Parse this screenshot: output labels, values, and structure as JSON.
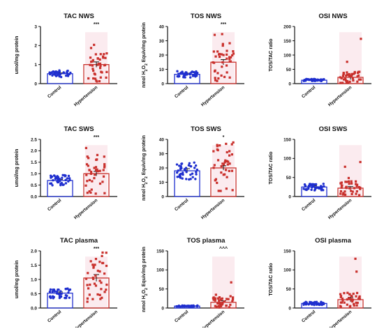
{
  "chart_data": [
    {
      "id": "tac_nws",
      "type": "bar",
      "title": "TAC NWS",
      "ylabel": "umol/mg protein",
      "ylim": [
        0,
        3
      ],
      "yticks": [
        "0",
        "1",
        "2",
        "3"
      ],
      "categories": [
        "Control",
        "Hypertension"
      ],
      "means": [
        0.52,
        1.0
      ],
      "errors": [
        0.04,
        0.14
      ],
      "significance": "***",
      "colors": {
        "control": "#1f2fcf",
        "hypertension": "#c9302c"
      }
    },
    {
      "id": "tos_nws",
      "type": "bar",
      "title": "TOS NWS",
      "ylabel": "nmol H2O2 Equiv/mg protein",
      "ylim": [
        0,
        40
      ],
      "yticks": [
        "0",
        "10",
        "20",
        "30",
        "40"
      ],
      "categories": [
        "Control",
        "Hypertension"
      ],
      "means": [
        6.5,
        15
      ],
      "errors": [
        0.8,
        1.8
      ],
      "significance": "***"
    },
    {
      "id": "osi_nws",
      "type": "bar",
      "title": "OSI NWS",
      "ylabel": "TOS/TAC ratio",
      "ylim": [
        0,
        200
      ],
      "yticks": [
        "0",
        "50",
        "100",
        "150",
        "200"
      ],
      "categories": [
        "Control",
        "Hypertension"
      ],
      "means": [
        12,
        22
      ],
      "errors": [
        2,
        8
      ],
      "significance": ""
    },
    {
      "id": "tac_sws",
      "type": "bar",
      "title": "TAC SWS",
      "ylabel": "umol/mg protein",
      "ylim": [
        0,
        2.5
      ],
      "yticks": [
        "0.0",
        "0.5",
        "1.0",
        "1.5",
        "2.0",
        "2.5"
      ],
      "categories": [
        "Control",
        "Hypertension"
      ],
      "means": [
        0.7,
        1.0
      ],
      "errors": [
        0.05,
        0.1
      ],
      "significance": "***"
    },
    {
      "id": "tos_sws",
      "type": "bar",
      "title": "TOS SWS",
      "ylabel": "nmol H2O2 Equiv/mg protein",
      "ylim": [
        0,
        40
      ],
      "yticks": [
        "0",
        "10",
        "20",
        "30",
        "40"
      ],
      "categories": [
        "Control",
        "Hypertension"
      ],
      "means": [
        18,
        20
      ],
      "errors": [
        1.5,
        1.5
      ],
      "significance": "*"
    },
    {
      "id": "osi_sws",
      "type": "bar",
      "title": "OSI SWS",
      "ylabel": "TOS/TAC ratio",
      "ylim": [
        0,
        150
      ],
      "yticks": [
        "0",
        "50",
        "100",
        "150"
      ],
      "categories": [
        "Control",
        "Hypertension"
      ],
      "means": [
        25,
        22
      ],
      "errors": [
        3,
        4
      ],
      "significance": ""
    },
    {
      "id": "tac_plasma",
      "type": "bar",
      "title": "TAC plasma",
      "ylabel": "umol/mg protein",
      "ylim": [
        0,
        2.0
      ],
      "yticks": [
        "0.0",
        "0.5",
        "1.0",
        "1.5",
        "2.0"
      ],
      "categories": [
        "Control",
        "Hypertension"
      ],
      "means": [
        0.52,
        1.05
      ],
      "errors": [
        0.04,
        0.12
      ],
      "significance": "***"
    },
    {
      "id": "tos_plasma",
      "type": "bar",
      "title": "TOS plasma",
      "ylabel": "nmol H2O2 Equiv/mg protein",
      "ylim": [
        0,
        150
      ],
      "yticks": [
        "0",
        "50",
        "100",
        "150"
      ],
      "categories": [
        "Control",
        "Hypertension"
      ],
      "means": [
        5,
        15
      ],
      "errors": [
        1,
        4
      ],
      "significance": "^^^"
    },
    {
      "id": "osi_plasma",
      "type": "bar",
      "title": "OSI plasma",
      "ylabel": "TOS/TAC ratio",
      "ylim": [
        0,
        150
      ],
      "yticks": [
        "0",
        "50",
        "100",
        "150"
      ],
      "categories": [
        "Control",
        "Hypertension"
      ],
      "means": [
        12,
        22
      ],
      "errors": [
        2,
        6
      ],
      "significance": ""
    }
  ]
}
